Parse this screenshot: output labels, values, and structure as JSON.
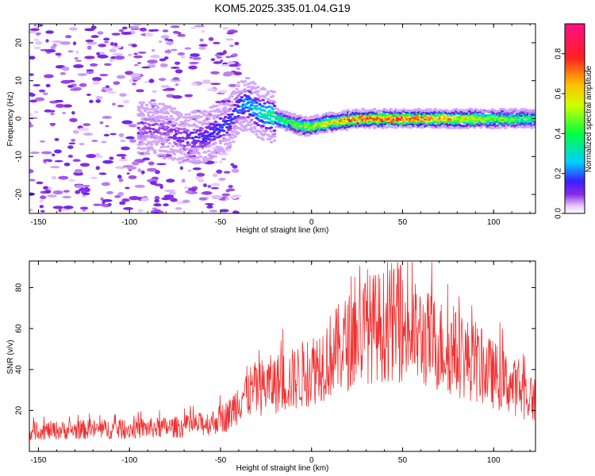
{
  "title": "KOM5.2025.335.01.04.G19",
  "chart_data": [
    {
      "type": "heatmap",
      "xlabel": "Height of straight line (km)",
      "ylabel": "Frequency (Hz)",
      "xlim": [
        -155,
        123
      ],
      "ylim": [
        -25,
        25
      ],
      "xticks": [
        -150,
        -100,
        -50,
        0,
        50,
        100
      ],
      "yticks": [
        -20,
        -10,
        0,
        10,
        20
      ],
      "colorbar": {
        "label": "Normalized spectral amplitude",
        "range": [
          0,
          0.95
        ],
        "ticks": [
          0.0,
          0.2,
          0.4,
          0.6,
          0.8
        ]
      },
      "ridge": [
        {
          "x": -150,
          "f": 0
        },
        {
          "x": -80,
          "f": -3
        },
        {
          "x": -72,
          "f": -5
        },
        {
          "x": -60,
          "f": -5
        },
        {
          "x": -52,
          "f": -3
        },
        {
          "x": -45,
          "f": -1
        },
        {
          "x": -40,
          "f": 3
        },
        {
          "x": -35,
          "f": 4
        },
        {
          "x": -30,
          "f": 2
        },
        {
          "x": -25,
          "f": 1
        },
        {
          "x": -15,
          "f": -0.5
        },
        {
          "x": -5,
          "f": -2
        },
        {
          "x": 0,
          "f": -2
        },
        {
          "x": 10,
          "f": -1
        },
        {
          "x": 25,
          "f": 0
        },
        {
          "x": 50,
          "f": 0
        },
        {
          "x": 100,
          "f": 0
        },
        {
          "x": 123,
          "f": 0
        }
      ],
      "ridge_amplitude": [
        {
          "x": -80,
          "a": 0.1
        },
        {
          "x": -40,
          "a": 0.2
        },
        {
          "x": -30,
          "a": 0.3
        },
        {
          "x": -15,
          "a": 0.45
        },
        {
          "x": 0,
          "a": 0.55
        },
        {
          "x": 25,
          "a": 0.8
        },
        {
          "x": 45,
          "a": 0.85
        },
        {
          "x": 70,
          "a": 0.7
        },
        {
          "x": 100,
          "a": 0.55
        },
        {
          "x": 123,
          "a": 0.4
        }
      ]
    },
    {
      "type": "line",
      "xlabel": "Height of straight line (km)",
      "ylabel": "SNR (v/v)",
      "xlim": [
        -155,
        123
      ],
      "ylim": [
        0,
        93
      ],
      "xticks": [
        -150,
        -100,
        -50,
        0,
        50,
        100
      ],
      "yticks": [
        20,
        40,
        60,
        80
      ],
      "line_color": "#f03030",
      "series": [
        {
          "name": "SNR",
          "trend": [
            {
              "x": -155,
              "y": 10
            },
            {
              "x": -100,
              "y": 11
            },
            {
              "x": -70,
              "y": 12
            },
            {
              "x": -55,
              "y": 14
            },
            {
              "x": -45,
              "y": 18
            },
            {
              "x": -38,
              "y": 28
            },
            {
              "x": -25,
              "y": 32
            },
            {
              "x": -10,
              "y": 35
            },
            {
              "x": 0,
              "y": 40
            },
            {
              "x": 15,
              "y": 50
            },
            {
              "x": 30,
              "y": 60
            },
            {
              "x": 45,
              "y": 62
            },
            {
              "x": 55,
              "y": 58
            },
            {
              "x": 70,
              "y": 52
            },
            {
              "x": 90,
              "y": 43
            },
            {
              "x": 110,
              "y": 32
            },
            {
              "x": 123,
              "y": 25
            }
          ],
          "peak": {
            "x": 44,
            "y": 92
          }
        }
      ]
    }
  ]
}
